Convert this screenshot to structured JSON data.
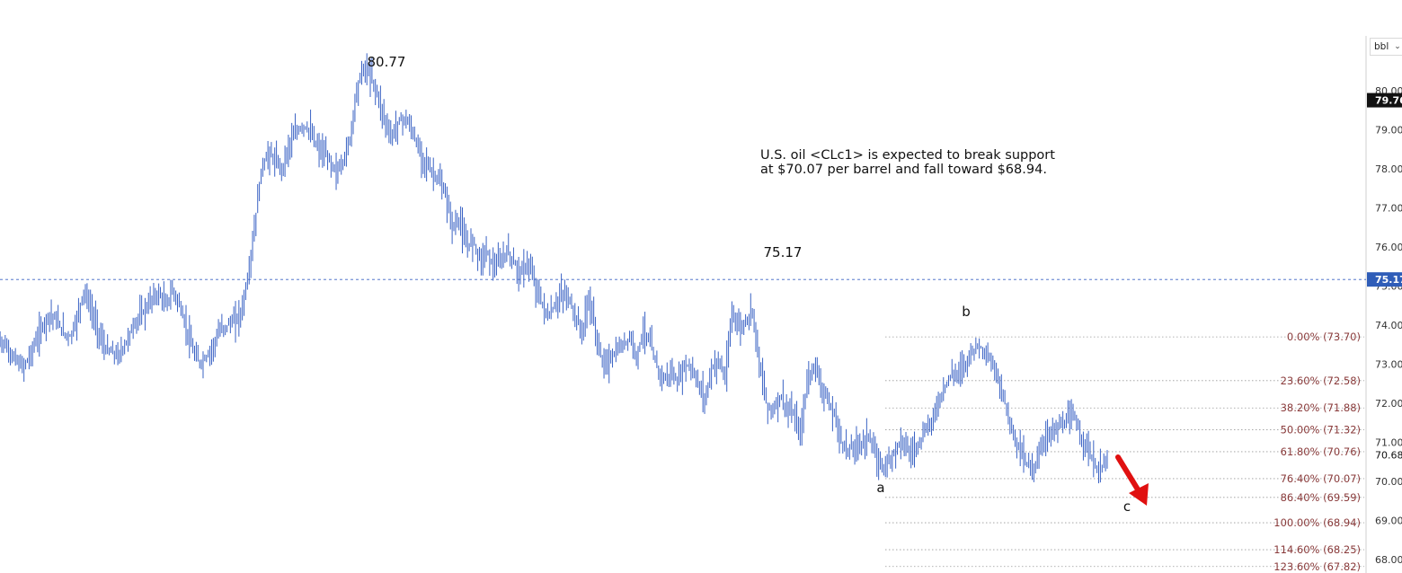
{
  "chart_data": {
    "type": "line",
    "style": "ohlc-bars",
    "instrument": "CLc1",
    "unit": "bbl",
    "colors": {
      "bars": "#3a62c4",
      "fib_text": "#8a3b3b",
      "fib_line": "#999999",
      "dashed_line": "#3a62c4",
      "arrow": "#e01010",
      "last_price_bg": "#111111",
      "level_bg": "#2f5db8"
    },
    "ylim": [
      67.7,
      80.9
    ],
    "y_ticks": [
      "80.00",
      "79.00",
      "78.00",
      "77.00",
      "76.00",
      "75.00",
      "74.00",
      "73.00",
      "72.00",
      "71.00",
      "70.00",
      "69.00",
      "68.00"
    ],
    "grid": false,
    "series": [
      {
        "values": [
          73.6,
          73.3,
          73.1,
          72.9,
          73.2,
          73.6,
          74.0,
          74.3,
          74.1,
          73.8,
          73.7,
          74.2,
          74.9,
          74.4,
          73.9,
          73.4,
          73.3,
          73.2,
          73.5,
          73.9,
          74.2,
          74.4,
          74.7,
          74.8,
          74.5,
          74.9,
          74.5,
          73.9,
          73.3,
          73.0,
          73.2,
          73.5,
          73.9,
          74.0,
          74.1,
          74.3,
          75.2,
          76.5,
          78.0,
          78.4,
          78.2,
          78.0,
          78.6,
          78.9,
          79.1,
          79.0,
          78.6,
          78.4,
          78.2,
          77.9,
          78.2,
          78.8,
          80.1,
          80.6,
          80.4,
          79.9,
          79.3,
          78.8,
          79.2,
          79.3,
          79.0,
          78.5,
          78.2,
          77.9,
          77.7,
          77.3,
          76.5,
          76.7,
          76.0,
          76.2,
          75.7,
          75.9,
          75.5,
          75.6,
          75.9,
          75.6,
          75.3,
          75.6,
          75.1,
          74.6,
          74.2,
          74.5,
          74.8,
          74.7,
          74.2,
          73.8,
          74.7,
          73.8,
          73.0,
          73.1,
          73.3,
          73.5,
          73.7,
          73.2,
          73.9,
          73.5,
          72.9,
          72.6,
          72.8,
          72.5,
          73.0,
          72.9,
          72.5,
          72.1,
          72.9,
          73.1,
          72.6,
          74.4,
          73.9,
          74.1,
          74.4,
          73.0,
          72.0,
          71.8,
          72.2,
          71.8,
          71.7,
          71.2,
          72.6,
          73.0,
          72.5,
          72.0,
          71.7,
          71.0,
          70.8,
          70.9,
          71.0,
          71.2,
          70.6,
          70.4,
          70.5,
          70.9,
          71.1,
          70.7,
          70.9,
          71.2,
          71.5,
          71.9,
          72.4,
          72.7,
          72.8,
          73.0,
          73.3,
          73.5,
          73.3,
          73.0,
          72.6,
          72.0,
          71.3,
          70.9,
          70.5,
          70.3,
          70.7,
          71.2,
          71.3,
          71.4,
          71.5,
          71.7,
          71.2,
          70.9,
          70.4,
          70.3,
          70.6
        ]
      }
    ],
    "fibonacci": [
      {
        "label": "0.00% (73.70)",
        "value": 73.7
      },
      {
        "label": "23.60% (72.58)",
        "value": 72.58
      },
      {
        "label": "38.20% (71.88)",
        "value": 71.88
      },
      {
        "label": "50.00% (71.32)",
        "value": 71.32
      },
      {
        "label": "61.80% (70.76)",
        "value": 70.76
      },
      {
        "label": "76.40% (70.07)",
        "value": 70.07
      },
      {
        "label": "86.40% (69.59)",
        "value": 69.59
      },
      {
        "label": "100.00% (68.94)",
        "value": 68.94
      },
      {
        "label": "114.60% (68.25)",
        "value": 68.25
      },
      {
        "label": "123.60% (67.82)",
        "value": 67.82
      }
    ],
    "horizontal_line": {
      "value": 75.17,
      "label": "75.17"
    },
    "last_price": {
      "value": 79.76,
      "label": "79.76"
    },
    "current_price": {
      "value": 70.68,
      "label": "70.68"
    },
    "annotations": {
      "peak_high": {
        "label": "80.77",
        "value": 80.77
      },
      "peak_mid": {
        "label": "75.17",
        "value": 75.17
      },
      "wave_a": "a",
      "wave_b": "b",
      "wave_c": "c",
      "note_lines": [
        "U.S. oil <CLc1> is expected to break support",
        "at $70.07 per barrel and fall toward $68.94."
      ]
    }
  },
  "axis": {
    "unit_label": "bbl",
    "dropdown_icon": "chevron-down-icon"
  }
}
